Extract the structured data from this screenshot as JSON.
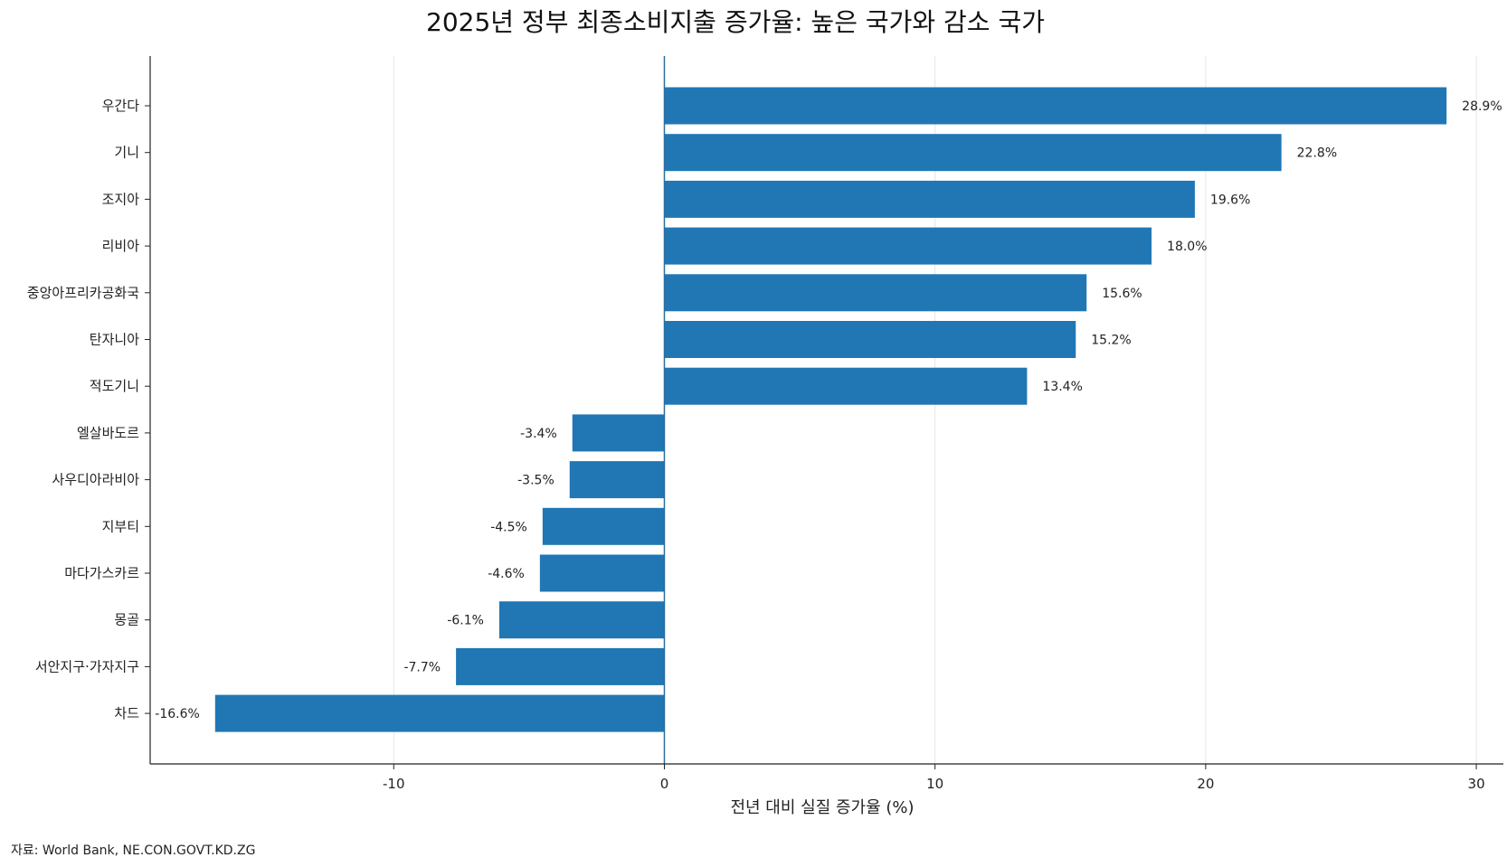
{
  "chart_data": {
    "type": "bar",
    "orientation": "horizontal",
    "title": "2025년 정부 최종소비지출 증가율: 높은 국가와 감소 국가",
    "xlabel": "전년 대비 실질 증가율 (%)",
    "ylabel": "",
    "xlim": [
      -19,
      31
    ],
    "xticks": [
      -10,
      0,
      10,
      20,
      30
    ],
    "grid": "vertical",
    "bar_color": "#2077b4",
    "categories": [
      "우간다",
      "기니",
      "조지아",
      "리비아",
      "중앙아프리카공화국",
      "탄자니아",
      "적도기니",
      "엘살바도르",
      "사우디아라비아",
      "지부티",
      "마다가스카르",
      "몽골",
      "서안지구·가자지구",
      "차드"
    ],
    "values": [
      28.9,
      22.8,
      19.6,
      18.0,
      15.6,
      15.2,
      13.4,
      -3.4,
      -3.5,
      -4.5,
      -4.6,
      -6.1,
      -7.7,
      -16.6
    ],
    "value_labels": [
      "28.9%",
      "22.8%",
      "19.6%",
      "18.0%",
      "15.6%",
      "15.2%",
      "13.4%",
      "-3.4%",
      "-3.5%",
      "-4.5%",
      "-4.6%",
      "-6.1%",
      "-7.7%",
      "-16.6%"
    ]
  },
  "source_note": "자료: World Bank, NE.CON.GOVT.KD.ZG"
}
